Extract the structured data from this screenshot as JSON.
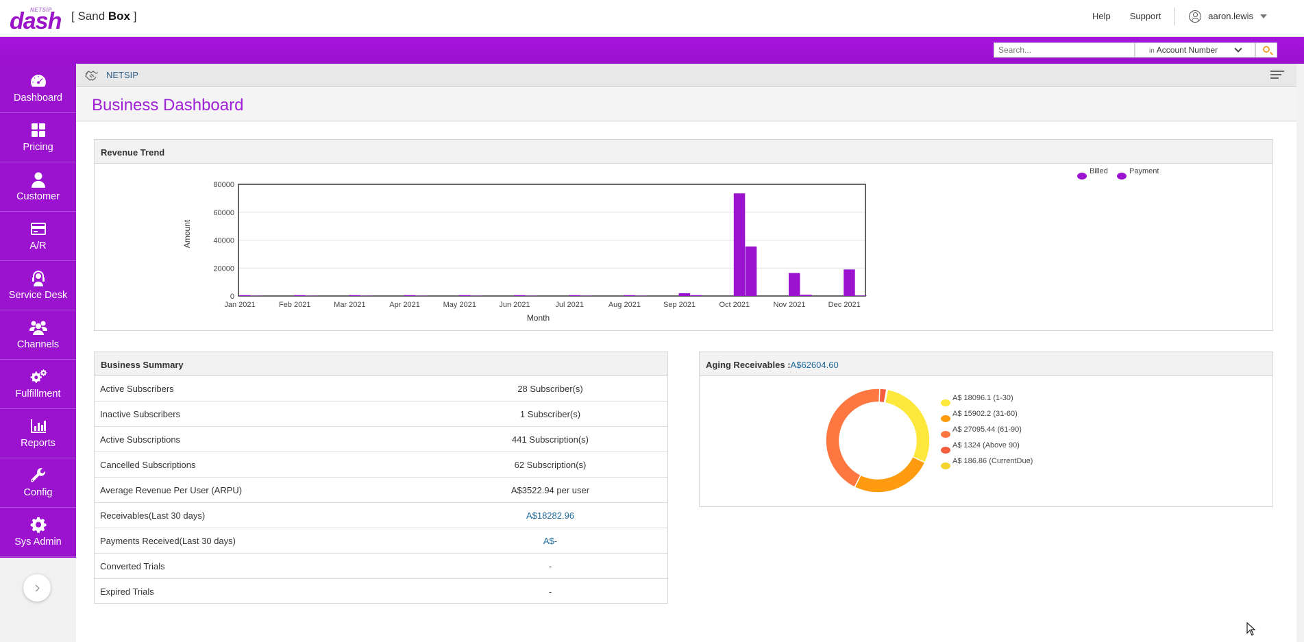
{
  "header": {
    "logo_small": "NETSIP",
    "logo_main": "dash",
    "env_prefix": "[ Sand ",
    "env_bold": "Box",
    "env_suffix": " ]",
    "help": "Help",
    "support": "Support",
    "username": "aaron.lewis"
  },
  "search": {
    "placeholder": "Search...",
    "in_label": "in",
    "field": "Account Number"
  },
  "sidebar": {
    "items": [
      {
        "label": "Dashboard",
        "icon": "dashboard-gauge-icon"
      },
      {
        "label": "Pricing",
        "icon": "pricing-grid-icon"
      },
      {
        "label": "Customer",
        "icon": "customer-person-icon"
      },
      {
        "label": "A/R",
        "icon": "credit-card-icon"
      },
      {
        "label": "Service Desk",
        "icon": "headset-icon"
      },
      {
        "label": "Channels",
        "icon": "group-icon"
      },
      {
        "label": "Fulfillment",
        "icon": "gears-icon"
      },
      {
        "label": "Reports",
        "icon": "bar-chart-icon"
      },
      {
        "label": "Config",
        "icon": "wrench-icon"
      },
      {
        "label": "Sys Admin",
        "icon": "gear-icon"
      }
    ]
  },
  "breadcrumb": {
    "text": "NETSIP"
  },
  "page": {
    "title": "Business Dashboard"
  },
  "revenue": {
    "title": "Revenue Trend"
  },
  "summary": {
    "title": "Business Summary",
    "rows": [
      {
        "label": "Active Subscribers",
        "value": "28 Subscriber(s)",
        "link": false
      },
      {
        "label": "Inactive Subscribers",
        "value": "1 Subscriber(s)",
        "link": false
      },
      {
        "label": "Active Subscriptions",
        "value": "441 Subscription(s)",
        "link": false
      },
      {
        "label": "Cancelled Subscriptions",
        "value": "62 Subscription(s)",
        "link": false
      },
      {
        "label": "Average Revenue Per User (ARPU)",
        "value": "A$3522.94 per user",
        "link": false
      },
      {
        "label": "Receivables(Last 30 days)",
        "value": "A$18282.96",
        "link": true
      },
      {
        "label": "Payments Received(Last 30 days)",
        "value": "A$-",
        "link": true
      },
      {
        "label": "Converted Trials",
        "value": "-",
        "link": false
      },
      {
        "label": "Expired Trials",
        "value": "-",
        "link": false
      }
    ]
  },
  "aging": {
    "title": "Aging Receivables :",
    "total": "A$62604.60"
  },
  "chart_data": [
    {
      "type": "bar",
      "title": "",
      "xlabel": "Month",
      "ylabel": "Amount",
      "ylim": [
        0,
        80000
      ],
      "yticks": [
        "0",
        "20000",
        "40000",
        "60000",
        "80000"
      ],
      "categories": [
        "Jan 2021",
        "Feb 2021",
        "Mar 2021",
        "Apr 2021",
        "May 2021",
        "Jun 2021",
        "Jul 2021",
        "Aug 2021",
        "Sep 2021",
        "Oct 2021",
        "Nov 2021",
        "Dec 2021"
      ],
      "legend_position": "top-right",
      "series": [
        {
          "name": "Billed",
          "color": "#9b12cf",
          "values": [
            600,
            600,
            600,
            600,
            600,
            600,
            600,
            600,
            2000,
            73500,
            16500,
            19000
          ]
        },
        {
          "name": "Payment",
          "color": "#9b12cf",
          "values": [
            200,
            200,
            200,
            200,
            200,
            200,
            200,
            200,
            600,
            35500,
            900,
            300
          ]
        }
      ]
    },
    {
      "type": "pie",
      "variant": "donut",
      "legend_position": "right",
      "slices": [
        {
          "label": "A$ 18096.1 (1-30)",
          "value": 18096.1,
          "color": "#fde73a"
        },
        {
          "label": "A$ 15902.2 (31-60)",
          "value": 15902.2,
          "color": "#fe9b0e"
        },
        {
          "label": "A$ 27095.44 (61-90)",
          "value": 27095.44,
          "color": "#fe7741"
        },
        {
          "label": "A$ 1324 (Above 90)",
          "value": 1324,
          "color": "#f55e3c"
        },
        {
          "label": "A$ 186.86 (CurrentDue)",
          "value": 186.86,
          "color": "#f2d330"
        }
      ]
    }
  ]
}
